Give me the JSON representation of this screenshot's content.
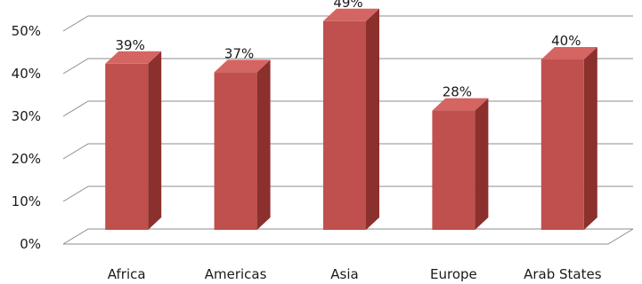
{
  "chart_data": {
    "type": "bar",
    "title": "",
    "xlabel": "",
    "ylabel": "",
    "categories": [
      "Africa",
      "Americas",
      "Asia",
      "Europe",
      "Arab States"
    ],
    "values": [
      39,
      37,
      49,
      28,
      40
    ],
    "value_labels": [
      "39%",
      "37%",
      "49%",
      "28%",
      "40%"
    ],
    "ylim": [
      0,
      50
    ],
    "yticks": [
      0,
      10,
      20,
      30,
      40,
      50
    ],
    "ytick_labels": [
      "0%",
      "10%",
      "20%",
      "30%",
      "40%",
      "50%"
    ],
    "grid": true,
    "three_d": true,
    "legend": "none",
    "colors": {
      "bar_front": "#C0504D",
      "bar_side": "#8B302D",
      "bar_top": "#D46562",
      "gridline": "#8C8C8C",
      "floor": "#8C8C8C",
      "text": "#1a1a1a"
    }
  }
}
